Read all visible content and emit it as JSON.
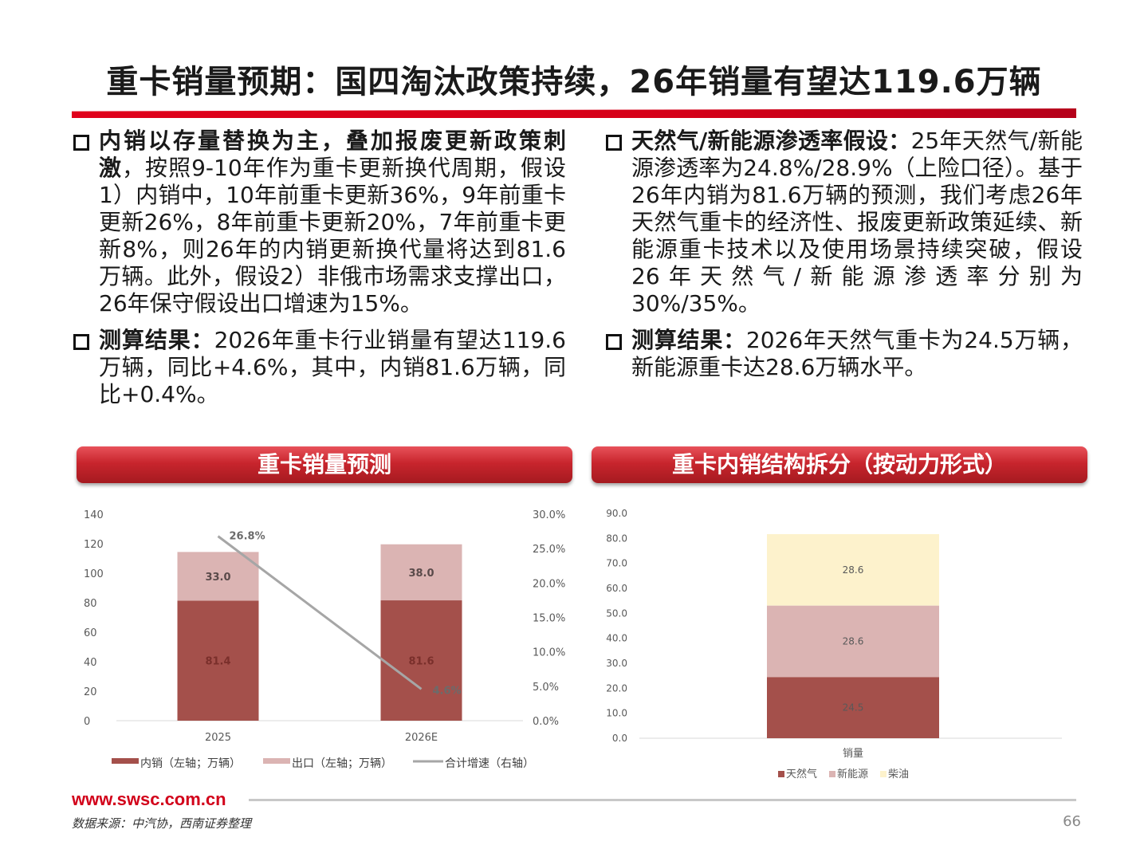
{
  "title": "重卡销量预期：国四淘汰政策持续，26年销量有望达119.6万辆",
  "left_column": {
    "b1_bold": "内销以存量替换为主，叠加报废更新政策刺激",
    "b1_text": "，按照9-10年作为重卡更新换代周期，假设1）内销中，10年前重卡更新36%，9年前重卡更新26%，8年前重卡更新20%，7年前重卡更新8%，则26年的内销更新换代量将达到81.6万辆。此外，假设2）非俄市场需求支撑出口，26年保守假设出口增速为15%。",
    "b2_bold": "测算结果：",
    "b2_text": "2026年重卡行业销量有望达119.6万辆，同比+4.6%，其中，内销81.6万辆，同比+0.4%。"
  },
  "right_column": {
    "b1_bold": "天然气/新能源渗透率假设：",
    "b1_text": "25年天然气/新能源渗透率为24.8%/28.9%（上险口径）。基于26年内销为81.6万辆的预测，我们考虑26年天然气重卡的经济性、报废更新政策延续、新能源重卡技术以及使用场景持续突破，假设26年天然气/新能源渗透率分别为30%/35%。",
    "b2_bold": "测算结果：",
    "b2_text": "2026年天然气重卡为24.5万辆，新能源重卡达28.6万辆水平。"
  },
  "panel_left_title": "重卡销量预测",
  "panel_right_title": "重卡内销结构拆分（按动力形式）",
  "footer": {
    "url": "www.swsc.com.cn",
    "source": "数据来源：中汽协，西南证券整理",
    "page": "66"
  },
  "colors": {
    "accent": "#d2001a",
    "domestic": "#a4504b",
    "export": "#dbb4b3",
    "growth": "#a6a6a6",
    "diesel": "#fdf2cc"
  },
  "chart_data": [
    {
      "type": "bar",
      "stacked": true,
      "categories": [
        "2025",
        "2026E"
      ],
      "series": [
        {
          "name": "内销（左轴；万辆）",
          "values": [
            81.4,
            81.6
          ],
          "labels": [
            "81.4",
            "81.6"
          ],
          "color": "#a4504b"
        },
        {
          "name": "出口（左轴；万辆）",
          "values": [
            33.0,
            38.0
          ],
          "labels": [
            "33.0",
            "38.0"
          ],
          "color": "#dbb4b3"
        }
      ],
      "line_series": {
        "name": "合计增速（右轴）",
        "values": [
          26.8,
          4.6
        ],
        "labels": [
          "26.8%",
          "4.6%"
        ],
        "color": "#a6a6a6"
      },
      "ylim": [
        0,
        140
      ],
      "y_ticks": [
        "0",
        "20",
        "40",
        "60",
        "80",
        "100",
        "120",
        "140"
      ],
      "y2lim": [
        0,
        30
      ],
      "y2_ticks": [
        "0.0%",
        "5.0%",
        "10.0%",
        "15.0%",
        "20.0%",
        "25.0%",
        "30.0%"
      ],
      "legend": "bottom"
    },
    {
      "type": "bar",
      "stacked": true,
      "categories": [
        "销量"
      ],
      "series": [
        {
          "name": "天然气",
          "values": [
            24.5
          ],
          "labels": [
            "24.5"
          ],
          "color": "#a4504b"
        },
        {
          "name": "新能源",
          "values": [
            28.6
          ],
          "labels": [
            "28.6"
          ],
          "color": "#dbb4b3"
        },
        {
          "name": "柴油",
          "values": [
            28.6
          ],
          "labels": [
            "28.6"
          ],
          "color": "#fdf2cc"
        }
      ],
      "ylim": [
        0,
        90
      ],
      "y_ticks": [
        "0.0",
        "10.0",
        "20.0",
        "30.0",
        "40.0",
        "50.0",
        "60.0",
        "70.0",
        "80.0",
        "90.0"
      ],
      "legend": "bottom"
    }
  ]
}
